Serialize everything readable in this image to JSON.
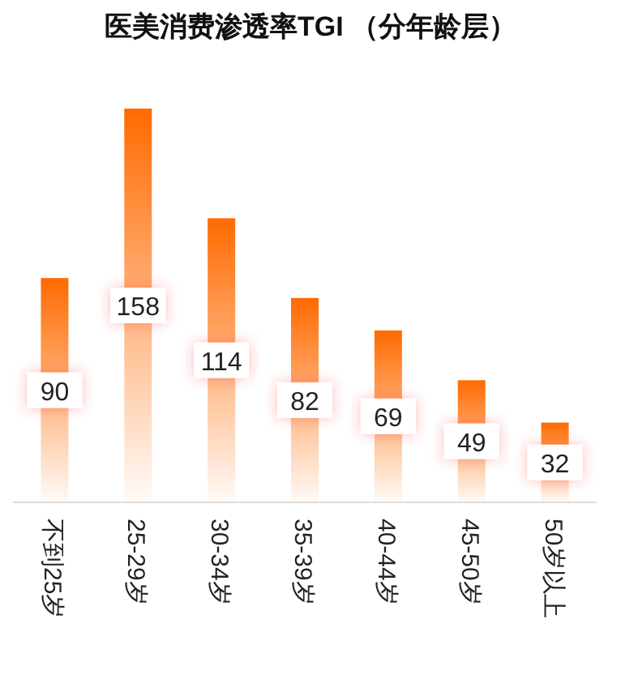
{
  "chart_data": {
    "type": "bar",
    "title": "医美消费渗透率TGI （分年龄层）",
    "categories": [
      "不到25岁",
      "25-29岁",
      "30-34岁",
      "35-39岁",
      "40-44岁",
      "45-50岁",
      "50岁以上"
    ],
    "values": [
      90,
      158,
      114,
      82,
      69,
      49,
      32
    ],
    "color": "#ff6a00",
    "data_labels": true
  }
}
